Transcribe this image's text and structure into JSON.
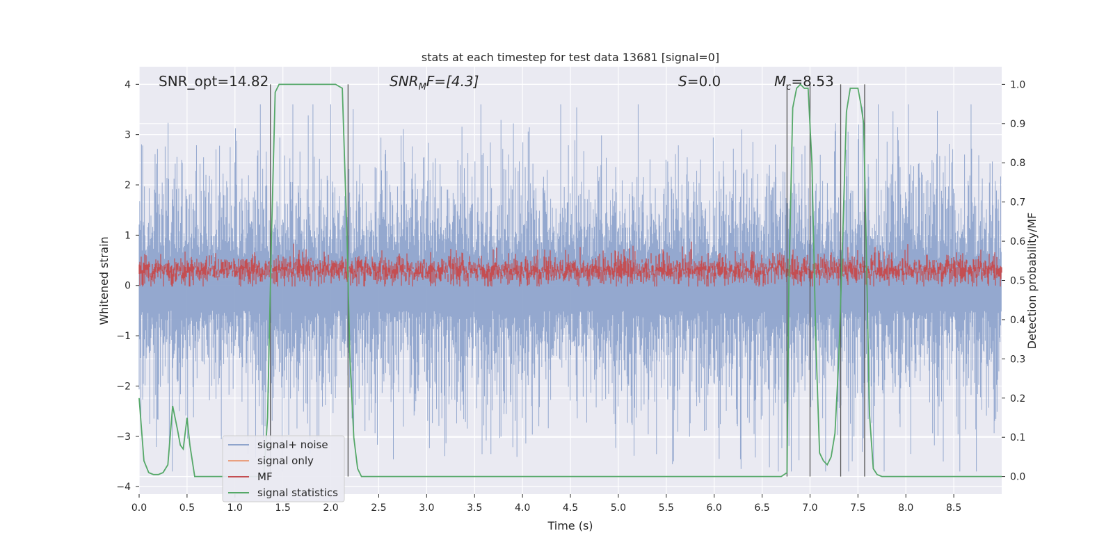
{
  "chart_data": {
    "type": "line",
    "title": "stats at each timestep for test data 13681 [signal=0]",
    "xlabel": "Time (s)",
    "ylabel": "Whitened strain",
    "y2label": "Detection probability/MF",
    "xlim": [
      0.0,
      9.0
    ],
    "ylim": [
      -4.15,
      4.35
    ],
    "y2lim": [
      -0.045,
      1.045
    ],
    "xticks": [
      "0.0",
      "0.5",
      "1.0",
      "1.5",
      "2.0",
      "2.5",
      "3.0",
      "3.5",
      "4.0",
      "4.5",
      "5.0",
      "5.5",
      "6.0",
      "6.5",
      "7.0",
      "7.5",
      "8.0",
      "8.5"
    ],
    "yticks": [
      "4",
      "3",
      "2",
      "1",
      "0",
      "−1",
      "−2",
      "−3",
      "−4"
    ],
    "y2ticks": [
      "1.0",
      "0.9",
      "0.8",
      "0.7",
      "0.6",
      "0.5",
      "0.4",
      "0.3",
      "0.2",
      "0.1",
      "0.0"
    ],
    "annotations": {
      "snr_opt": "SNR_opt=14.82",
      "snr_mf_base": "SNR",
      "snr_mf_sub": "M",
      "snr_mf_tail": "F=[4.3]",
      "s_label": "S",
      "s_value": "=0.0",
      "mc_base": "M",
      "mc_sub": "c",
      "mc_value": "=8.53"
    },
    "legend": {
      "position": "lower-left",
      "entries": [
        "signal+ noise",
        "signal only",
        "MF",
        "signal statistics"
      ]
    },
    "series": [
      {
        "name": "signal+ noise",
        "axis": "left",
        "color": "#8fa4cc",
        "style": "dense noise envelope, amplitude roughly ±2.5 with spikes to ±3.6"
      },
      {
        "name": "signal only",
        "axis": "left",
        "color": "#e9a080",
        "values": []
      },
      {
        "name": "MF",
        "axis": "left",
        "color": "#c44e52",
        "style": "dense band between about 0.0 and 0.9"
      },
      {
        "name": "signal statistics",
        "axis": "right",
        "color": "#55a868",
        "x": [
          0.0,
          0.05,
          0.1,
          0.15,
          0.2,
          0.25,
          0.3,
          0.35,
          0.4,
          0.43,
          0.46,
          0.5,
          0.53,
          0.58,
          0.62,
          0.65,
          0.7,
          0.75,
          0.8,
          0.9,
          1.0,
          1.1,
          1.2,
          1.3,
          1.34,
          1.38,
          1.42,
          1.46,
          1.5,
          1.55,
          1.65,
          1.75,
          1.85,
          1.95,
          2.05,
          2.12,
          2.17,
          2.2,
          2.24,
          2.28,
          2.32,
          2.37,
          2.5,
          3.0,
          4.0,
          5.0,
          6.0,
          6.5,
          6.7,
          6.76,
          6.78,
          6.82,
          6.86,
          6.9,
          6.94,
          6.98,
          7.02,
          7.06,
          7.1,
          7.14,
          7.18,
          7.22,
          7.26,
          7.3,
          7.34,
          7.38,
          7.42,
          7.45,
          7.5,
          7.53,
          7.56,
          7.59,
          7.62,
          7.66,
          7.7,
          7.75,
          7.8,
          7.9,
          8.0,
          8.5,
          9.0
        ],
        "y": [
          0.2,
          0.04,
          0.01,
          0.005,
          0.005,
          0.01,
          0.03,
          0.18,
          0.12,
          0.08,
          0.07,
          0.15,
          0.08,
          0.0,
          0.0,
          0.0,
          0.0,
          0.0,
          0.0,
          0.0,
          0.0,
          0.0,
          0.0,
          0.0,
          0.15,
          0.6,
          0.98,
          1.0,
          1.0,
          1.0,
          1.0,
          1.0,
          1.0,
          1.0,
          1.0,
          0.99,
          0.6,
          0.3,
          0.1,
          0.02,
          0.0,
          0.0,
          0.0,
          0.0,
          0.0,
          0.0,
          0.0,
          0.0,
          0.0,
          0.01,
          0.5,
          0.94,
          0.99,
          1.0,
          0.99,
          0.99,
          0.8,
          0.35,
          0.06,
          0.04,
          0.03,
          0.05,
          0.11,
          0.3,
          0.6,
          0.93,
          0.99,
          0.99,
          0.99,
          0.95,
          0.9,
          0.55,
          0.16,
          0.02,
          0.005,
          0.0,
          0.0,
          0.0,
          0.0,
          0.0,
          0.0
        ]
      }
    ],
    "vertical_markers_x": [
      1.37,
      2.18,
      6.76,
      7.0,
      7.32,
      7.57
    ]
  }
}
